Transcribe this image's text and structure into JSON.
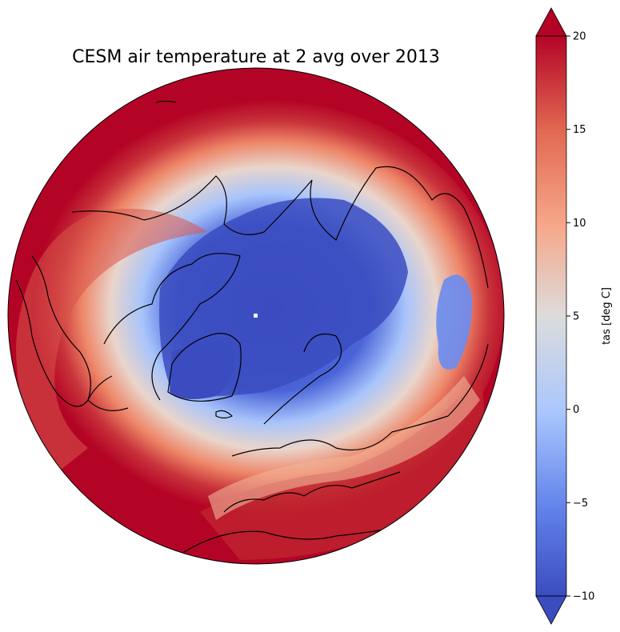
{
  "title": "CESM air temperature at 2 avg over 2013",
  "colorbar": {
    "label": "tas [deg C]",
    "min": -10,
    "max": 20,
    "ticks": [
      "20",
      "15",
      "10",
      "5",
      "0",
      "−5",
      "−10"
    ],
    "tick_values": [
      20,
      15,
      10,
      5,
      0,
      -5,
      -10
    ],
    "colormap": "coolwarm",
    "extend": "both",
    "colors": {
      "cold": "#3b4cc0",
      "neutral": "#dddddd",
      "warm": "#b40426"
    }
  },
  "map": {
    "projection": "north-polar-orthographic",
    "coastlines": true
  }
}
